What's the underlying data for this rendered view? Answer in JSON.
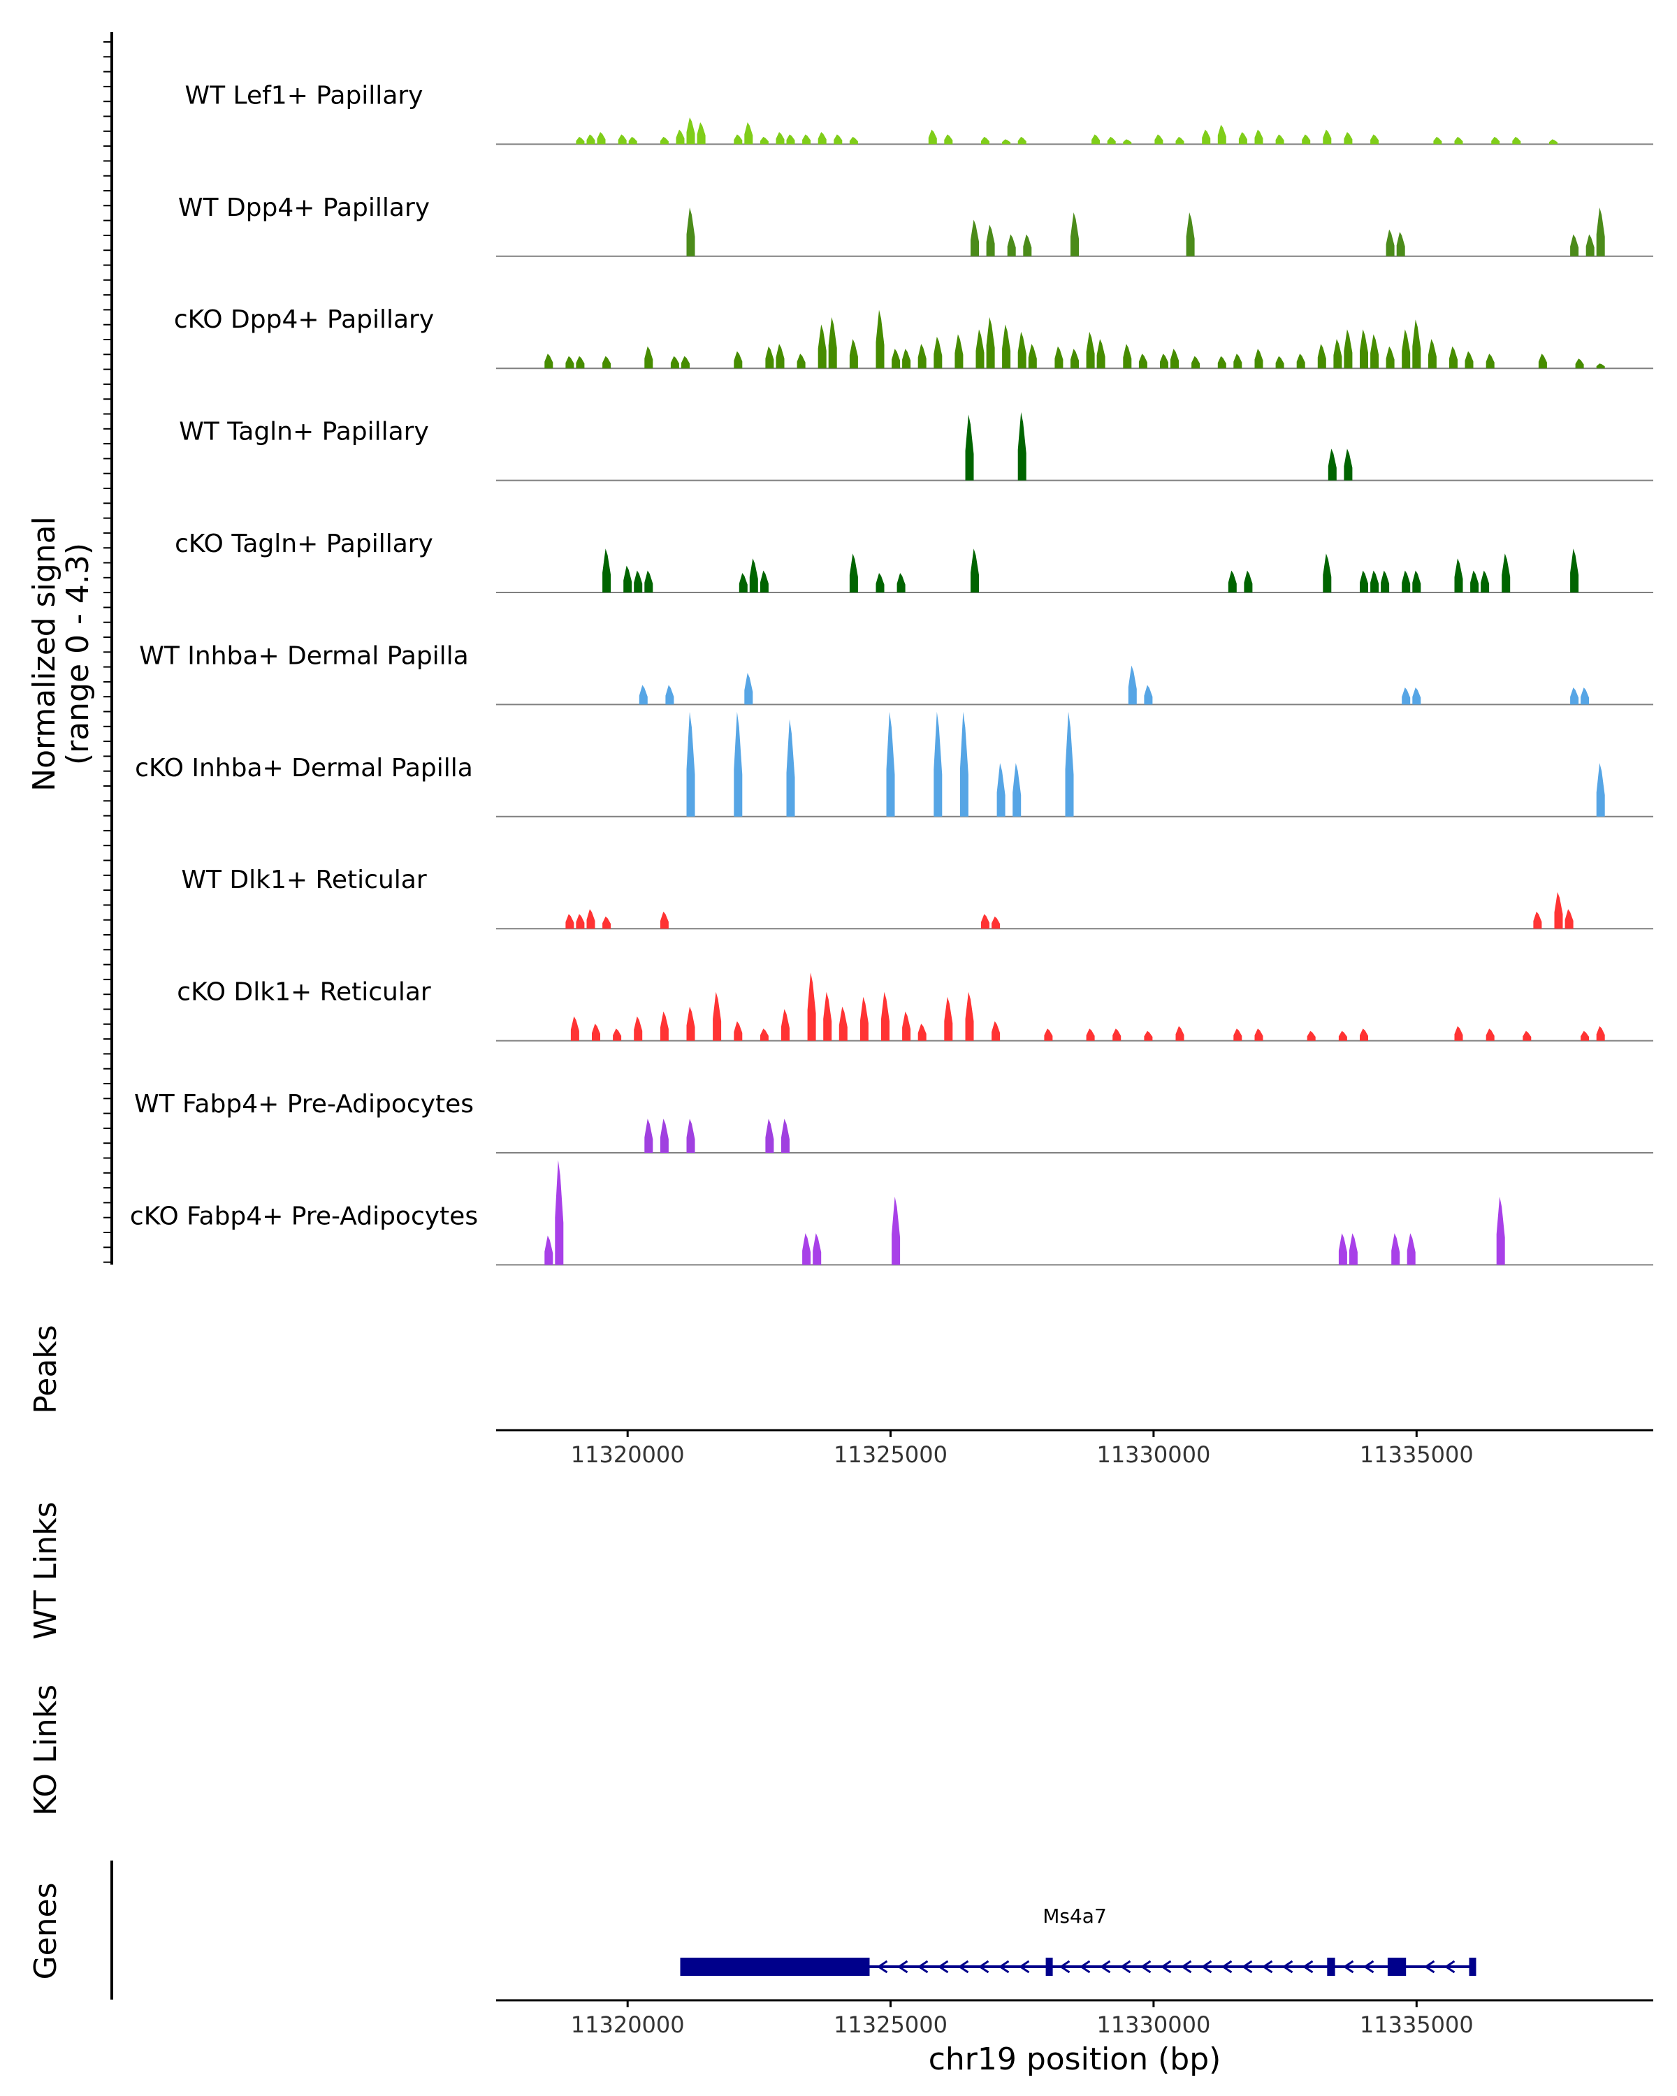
{
  "chart_data": {
    "type": "area",
    "title": "",
    "xlabel": "chr19 position (bp)",
    "ylabel_line1": "Normalized signal",
    "ylabel_line2": "(range 0 - 4.3)",
    "x_range": [
      11317500,
      11339500
    ],
    "x_ticks": [
      11320000,
      11325000,
      11330000,
      11335000
    ],
    "x_tick_labels": [
      "11320000",
      "11325000",
      "11330000",
      "11335000"
    ],
    "y_range": [
      0,
      4.3
    ],
    "track_labels": {
      "peaks": "Peaks",
      "wt_links": "WT Links",
      "ko_links": "KO Links",
      "genes": "Genes"
    },
    "gene": {
      "name": "Ms4a7",
      "start": 11321000,
      "end": 11336100,
      "strand": "-",
      "exons": [
        [
          11321000,
          11324600
        ],
        [
          11327950,
          11328000
        ],
        [
          11333300,
          11333450
        ],
        [
          11334450,
          11334800
        ],
        [
          11336000,
          11336100
        ]
      ],
      "color": "#00008b"
    },
    "series": [
      {
        "name": "WT Lef1+ Papillary",
        "color": "#7fcd19",
        "peaks": [
          [
            11319100,
            0.3
          ],
          [
            11319300,
            0.4
          ],
          [
            11319500,
            0.5
          ],
          [
            11319900,
            0.4
          ],
          [
            11320100,
            0.3
          ],
          [
            11320700,
            0.3
          ],
          [
            11321000,
            0.6
          ],
          [
            11321200,
            1.1
          ],
          [
            11321400,
            0.9
          ],
          [
            11322100,
            0.4
          ],
          [
            11322300,
            0.9
          ],
          [
            11322600,
            0.3
          ],
          [
            11322900,
            0.5
          ],
          [
            11323100,
            0.4
          ],
          [
            11323400,
            0.4
          ],
          [
            11323700,
            0.5
          ],
          [
            11324000,
            0.4
          ],
          [
            11324300,
            0.3
          ],
          [
            11325800,
            0.6
          ],
          [
            11326100,
            0.4
          ],
          [
            11326800,
            0.3
          ],
          [
            11327200,
            0.2
          ],
          [
            11327500,
            0.3
          ],
          [
            11328900,
            0.4
          ],
          [
            11329200,
            0.3
          ],
          [
            11329500,
            0.2
          ],
          [
            11330100,
            0.4
          ],
          [
            11330500,
            0.3
          ],
          [
            11331000,
            0.6
          ],
          [
            11331300,
            0.8
          ],
          [
            11331700,
            0.5
          ],
          [
            11332000,
            0.6
          ],
          [
            11332400,
            0.4
          ],
          [
            11332900,
            0.4
          ],
          [
            11333300,
            0.6
          ],
          [
            11333700,
            0.5
          ],
          [
            11334200,
            0.4
          ],
          [
            11335400,
            0.3
          ],
          [
            11335800,
            0.3
          ],
          [
            11336500,
            0.3
          ],
          [
            11336900,
            0.3
          ],
          [
            11337600,
            0.2
          ]
        ]
      },
      {
        "name": "WT Dpp4+ Papillary",
        "color": "#4b8b1a",
        "peaks": [
          [
            11321200,
            2.0
          ],
          [
            11326600,
            1.5
          ],
          [
            11326900,
            1.3
          ],
          [
            11327300,
            0.9
          ],
          [
            11327600,
            0.9
          ],
          [
            11328500,
            1.8
          ],
          [
            11330700,
            1.8
          ],
          [
            11334500,
            1.1
          ],
          [
            11334700,
            1.0
          ],
          [
            11338000,
            0.9
          ],
          [
            11338300,
            0.9
          ],
          [
            11338500,
            2.0
          ]
        ]
      },
      {
        "name": "cKO Dpp4+ Papillary",
        "color": "#468c00",
        "peaks": [
          [
            11318500,
            0.6
          ],
          [
            11318900,
            0.5
          ],
          [
            11319100,
            0.5
          ],
          [
            11319600,
            0.5
          ],
          [
            11320400,
            0.9
          ],
          [
            11320900,
            0.5
          ],
          [
            11321100,
            0.5
          ],
          [
            11322100,
            0.7
          ],
          [
            11322700,
            0.9
          ],
          [
            11322900,
            1.0
          ],
          [
            11323300,
            0.6
          ],
          [
            11323700,
            1.8
          ],
          [
            11323900,
            2.1
          ],
          [
            11324300,
            1.2
          ],
          [
            11324800,
            2.4
          ],
          [
            11325100,
            0.8
          ],
          [
            11325300,
            0.8
          ],
          [
            11325600,
            1.0
          ],
          [
            11325900,
            1.3
          ],
          [
            11326300,
            1.4
          ],
          [
            11326700,
            1.6
          ],
          [
            11326900,
            2.1
          ],
          [
            11327200,
            1.8
          ],
          [
            11327500,
            1.5
          ],
          [
            11327700,
            1.0
          ],
          [
            11328200,
            0.9
          ],
          [
            11328500,
            0.8
          ],
          [
            11328800,
            1.5
          ],
          [
            11329000,
            1.2
          ],
          [
            11329500,
            1.0
          ],
          [
            11329800,
            0.6
          ],
          [
            11330200,
            0.6
          ],
          [
            11330400,
            0.8
          ],
          [
            11330800,
            0.5
          ],
          [
            11331300,
            0.5
          ],
          [
            11331600,
            0.6
          ],
          [
            11332000,
            0.8
          ],
          [
            11332400,
            0.5
          ],
          [
            11332800,
            0.6
          ],
          [
            11333200,
            1.0
          ],
          [
            11333500,
            1.2
          ],
          [
            11333700,
            1.6
          ],
          [
            11334000,
            1.6
          ],
          [
            11334200,
            1.4
          ],
          [
            11334500,
            0.9
          ],
          [
            11334800,
            1.6
          ],
          [
            11335000,
            2.0
          ],
          [
            11335300,
            1.2
          ],
          [
            11335700,
            0.9
          ],
          [
            11336000,
            0.7
          ],
          [
            11336400,
            0.6
          ],
          [
            11337400,
            0.6
          ],
          [
            11338100,
            0.4
          ],
          [
            11338500,
            0.2
          ]
        ]
      },
      {
        "name": "WT Tagln+ Papillary",
        "color": "#006400",
        "peaks": [
          [
            11326500,
            2.7
          ],
          [
            11327500,
            2.8
          ],
          [
            11333400,
            1.3
          ],
          [
            11333700,
            1.3
          ]
        ]
      },
      {
        "name": "cKO Tagln+ Papillary",
        "color": "#006400",
        "peaks": [
          [
            11319600,
            1.8
          ],
          [
            11320000,
            1.1
          ],
          [
            11320200,
            0.9
          ],
          [
            11320400,
            0.9
          ],
          [
            11322200,
            0.8
          ],
          [
            11322400,
            1.4
          ],
          [
            11322600,
            0.9
          ],
          [
            11324300,
            1.6
          ],
          [
            11324800,
            0.8
          ],
          [
            11325200,
            0.8
          ],
          [
            11326600,
            1.8
          ],
          [
            11331500,
            0.9
          ],
          [
            11331800,
            0.9
          ],
          [
            11333300,
            1.6
          ],
          [
            11334000,
            0.9
          ],
          [
            11334200,
            0.9
          ],
          [
            11334400,
            0.9
          ],
          [
            11334800,
            0.9
          ],
          [
            11335000,
            0.9
          ],
          [
            11335800,
            1.4
          ],
          [
            11336100,
            0.9
          ],
          [
            11336300,
            0.9
          ],
          [
            11336700,
            1.6
          ],
          [
            11338000,
            1.8
          ]
        ]
      },
      {
        "name": "WT Inhba+ Dermal Papilla",
        "color": "#56a5e5",
        "peaks": [
          [
            11320300,
            0.8
          ],
          [
            11320800,
            0.8
          ],
          [
            11322300,
            1.3
          ],
          [
            11329600,
            1.6
          ],
          [
            11329900,
            0.8
          ],
          [
            11334800,
            0.7
          ],
          [
            11335000,
            0.7
          ],
          [
            11338000,
            0.7
          ],
          [
            11338200,
            0.7
          ]
        ]
      },
      {
        "name": "cKO Inhba+ Dermal Papilla",
        "color": "#56a5e5",
        "peaks": [
          [
            11321200,
            4.3
          ],
          [
            11322100,
            4.3
          ],
          [
            11323100,
            4.0
          ],
          [
            11325000,
            4.3
          ],
          [
            11325900,
            4.3
          ],
          [
            11326400,
            4.3
          ],
          [
            11327100,
            2.2
          ],
          [
            11327400,
            2.2
          ],
          [
            11328400,
            4.3
          ],
          [
            11338500,
            2.2
          ]
        ]
      },
      {
        "name": "WT Dlk1+ Reticular",
        "color": "#ff3333",
        "peaks": [
          [
            11318900,
            0.6
          ],
          [
            11319100,
            0.6
          ],
          [
            11319300,
            0.8
          ],
          [
            11319600,
            0.5
          ],
          [
            11320700,
            0.7
          ],
          [
            11326800,
            0.6
          ],
          [
            11327000,
            0.5
          ],
          [
            11337300,
            0.7
          ],
          [
            11337700,
            1.5
          ],
          [
            11337900,
            0.8
          ]
        ]
      },
      {
        "name": "cKO Dlk1+ Reticular",
        "color": "#ff3333",
        "peaks": [
          [
            11319000,
            1.0
          ],
          [
            11319400,
            0.7
          ],
          [
            11319800,
            0.5
          ],
          [
            11320200,
            1.0
          ],
          [
            11320700,
            1.2
          ],
          [
            11321200,
            1.4
          ],
          [
            11321700,
            2.0
          ],
          [
            11322100,
            0.8
          ],
          [
            11322600,
            0.5
          ],
          [
            11323000,
            1.3
          ],
          [
            11323500,
            2.8
          ],
          [
            11323800,
            2.0
          ],
          [
            11324100,
            1.4
          ],
          [
            11324500,
            1.8
          ],
          [
            11324900,
            2.0
          ],
          [
            11325300,
            1.2
          ],
          [
            11325600,
            0.7
          ],
          [
            11326100,
            1.8
          ],
          [
            11326500,
            2.0
          ],
          [
            11327000,
            0.8
          ],
          [
            11328000,
            0.5
          ],
          [
            11328800,
            0.5
          ],
          [
            11329300,
            0.5
          ],
          [
            11329900,
            0.4
          ],
          [
            11330500,
            0.6
          ],
          [
            11331600,
            0.5
          ],
          [
            11332000,
            0.5
          ],
          [
            11333000,
            0.4
          ],
          [
            11333600,
            0.4
          ],
          [
            11334000,
            0.5
          ],
          [
            11335800,
            0.6
          ],
          [
            11336400,
            0.5
          ],
          [
            11337100,
            0.4
          ],
          [
            11338200,
            0.4
          ],
          [
            11338500,
            0.6
          ]
        ]
      },
      {
        "name": "WT Fabp4+ Pre-Adipocytes",
        "color": "#a040e0",
        "peaks": [
          [
            11320400,
            1.4
          ],
          [
            11320700,
            1.4
          ],
          [
            11321200,
            1.4
          ],
          [
            11322700,
            1.4
          ],
          [
            11323000,
            1.4
          ]
        ]
      },
      {
        "name": "cKO Fabp4+ Pre-Adipocytes",
        "color": "#a840e8",
        "peaks": [
          [
            11318500,
            1.2
          ],
          [
            11318700,
            4.3
          ],
          [
            11323400,
            1.3
          ],
          [
            11323600,
            1.3
          ],
          [
            11325100,
            2.8
          ],
          [
            11333600,
            1.3
          ],
          [
            11333800,
            1.3
          ],
          [
            11334600,
            1.3
          ],
          [
            11334900,
            1.3
          ],
          [
            11336600,
            2.8
          ]
        ]
      }
    ]
  }
}
